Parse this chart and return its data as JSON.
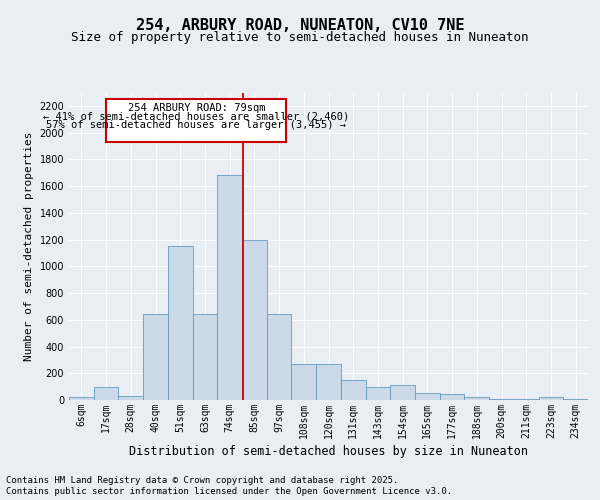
{
  "title1": "254, ARBURY ROAD, NUNEATON, CV10 7NE",
  "title2": "Size of property relative to semi-detached houses in Nuneaton",
  "xlabel": "Distribution of semi-detached houses by size in Nuneaton",
  "ylabel": "Number of semi-detached properties",
  "footer1": "Contains HM Land Registry data © Crown copyright and database right 2025.",
  "footer2": "Contains public sector information licensed under the Open Government Licence v3.0.",
  "categories": [
    "6sqm",
    "17sqm",
    "28sqm",
    "40sqm",
    "51sqm",
    "63sqm",
    "74sqm",
    "85sqm",
    "97sqm",
    "108sqm",
    "120sqm",
    "131sqm",
    "143sqm",
    "154sqm",
    "165sqm",
    "177sqm",
    "188sqm",
    "200sqm",
    "211sqm",
    "223sqm",
    "234sqm"
  ],
  "values": [
    20,
    100,
    30,
    640,
    1150,
    640,
    1680,
    1200,
    640,
    270,
    270,
    150,
    100,
    110,
    55,
    45,
    25,
    10,
    10,
    20,
    10
  ],
  "bar_color": "#ccd9e8",
  "bar_edge_color": "#6699bb",
  "line_color": "#cc0000",
  "line_x_index": 6.55,
  "pct_smaller": 41,
  "count_smaller": 2460,
  "pct_larger": 57,
  "count_larger": 3455,
  "annotation_line1": "254 ARBURY ROAD: 79sqm",
  "annotation_line2": "← 41% of semi-detached houses are smaller (2,460)",
  "annotation_line3": "57% of semi-detached houses are larger (3,455) →",
  "ylim": [
    0,
    2300
  ],
  "yticks": [
    0,
    200,
    400,
    600,
    800,
    1000,
    1200,
    1400,
    1600,
    1800,
    2000,
    2200
  ],
  "bg_color": "#e8eef4",
  "box_edge_color": "#cc0000",
  "title1_fontsize": 11,
  "title2_fontsize": 9,
  "xlabel_fontsize": 8.5,
  "ylabel_fontsize": 8,
  "tick_fontsize": 7,
  "annotation_fontsize": 7.5,
  "footer_fontsize": 6.5
}
